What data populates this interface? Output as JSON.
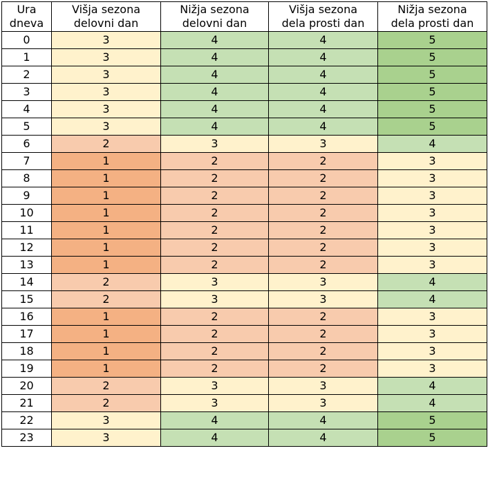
{
  "table": {
    "headers": [
      [
        "Ura",
        "dneva"
      ],
      [
        "Višja sezona",
        "delovni dan"
      ],
      [
        "Nižja sezona",
        "delovni dan"
      ],
      [
        "Višja sezona",
        "dela prosti dan"
      ],
      [
        "Nižja sezona",
        "dela prosti dan"
      ]
    ],
    "rows": [
      {
        "hour": "0",
        "values": [
          "3",
          "4",
          "4",
          "5"
        ]
      },
      {
        "hour": "1",
        "values": [
          "3",
          "4",
          "4",
          "5"
        ]
      },
      {
        "hour": "2",
        "values": [
          "3",
          "4",
          "4",
          "5"
        ]
      },
      {
        "hour": "3",
        "values": [
          "3",
          "4",
          "4",
          "5"
        ]
      },
      {
        "hour": "4",
        "values": [
          "3",
          "4",
          "4",
          "5"
        ]
      },
      {
        "hour": "5",
        "values": [
          "3",
          "4",
          "4",
          "5"
        ]
      },
      {
        "hour": "6",
        "values": [
          "2",
          "3",
          "3",
          "4"
        ]
      },
      {
        "hour": "7",
        "values": [
          "1",
          "2",
          "2",
          "3"
        ]
      },
      {
        "hour": "8",
        "values": [
          "1",
          "2",
          "2",
          "3"
        ]
      },
      {
        "hour": "9",
        "values": [
          "1",
          "2",
          "2",
          "3"
        ]
      },
      {
        "hour": "10",
        "values": [
          "1",
          "2",
          "2",
          "3"
        ]
      },
      {
        "hour": "11",
        "values": [
          "1",
          "2",
          "2",
          "3"
        ]
      },
      {
        "hour": "12",
        "values": [
          "1",
          "2",
          "2",
          "3"
        ]
      },
      {
        "hour": "13",
        "values": [
          "1",
          "2",
          "2",
          "3"
        ]
      },
      {
        "hour": "14",
        "values": [
          "2",
          "3",
          "3",
          "4"
        ]
      },
      {
        "hour": "15",
        "values": [
          "2",
          "3",
          "3",
          "4"
        ]
      },
      {
        "hour": "16",
        "values": [
          "1",
          "2",
          "2",
          "3"
        ]
      },
      {
        "hour": "17",
        "values": [
          "1",
          "2",
          "2",
          "3"
        ]
      },
      {
        "hour": "18",
        "values": [
          "1",
          "2",
          "2",
          "3"
        ]
      },
      {
        "hour": "19",
        "values": [
          "1",
          "2",
          "2",
          "3"
        ]
      },
      {
        "hour": "20",
        "values": [
          "2",
          "3",
          "3",
          "4"
        ]
      },
      {
        "hour": "21",
        "values": [
          "2",
          "3",
          "3",
          "4"
        ]
      },
      {
        "hour": "22",
        "values": [
          "3",
          "4",
          "4",
          "5"
        ]
      },
      {
        "hour": "23",
        "values": [
          "3",
          "4",
          "4",
          "5"
        ]
      }
    ]
  },
  "colors": {
    "1": "#f4b183",
    "2": "#f8cbad",
    "3": "#fff2cc",
    "4": "#c5e0b4",
    "5": "#a9d18e",
    "border": "#000000",
    "header_bg": "#ffffff"
  }
}
